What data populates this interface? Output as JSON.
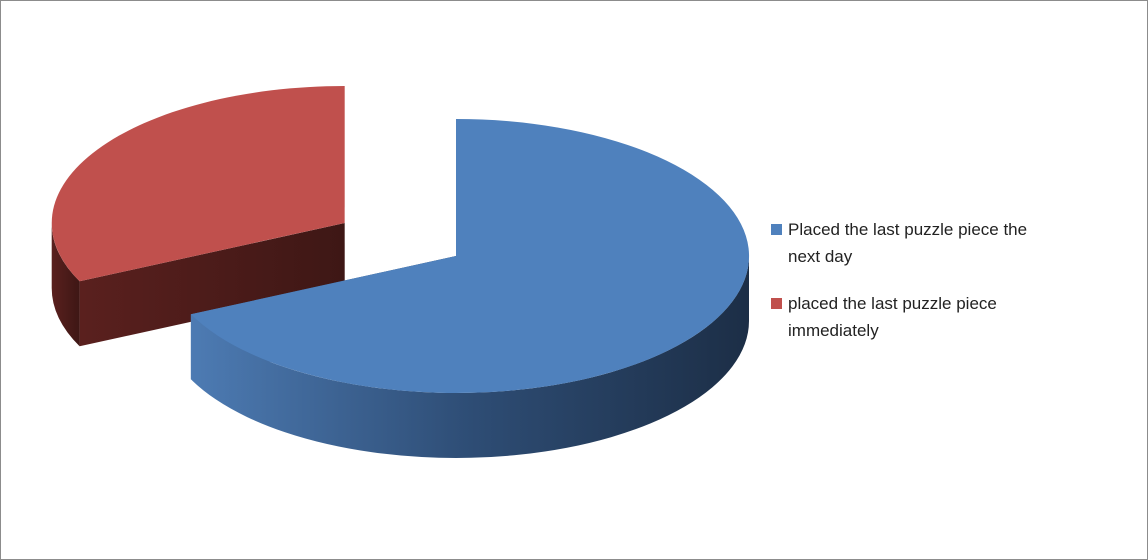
{
  "chart_data": {
    "type": "pie",
    "categories": [
      "Placed the last puzzle piece the next day",
      "placed the last puzzle piece immediately"
    ],
    "values": [
      68,
      32
    ],
    "colors": [
      "#4f81bd",
      "#c0504d"
    ],
    "legend": "right"
  }
}
